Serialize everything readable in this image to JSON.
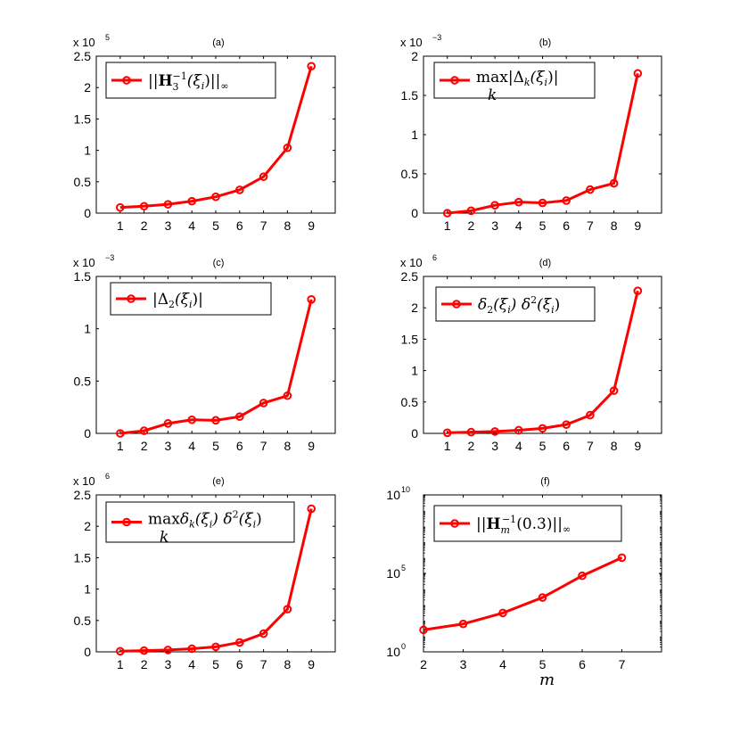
{
  "chart_data": [
    {
      "panel": "a",
      "type": "line",
      "title": "(a)",
      "legend": "||H_3^{-1}(ξ_i)||_∞",
      "exponent": "x 10",
      "exponent_power": "5",
      "x": [
        1,
        2,
        3,
        4,
        5,
        6,
        7,
        8,
        9
      ],
      "y": [
        0.09,
        0.11,
        0.14,
        0.19,
        0.26,
        0.37,
        0.58,
        1.04,
        2.34
      ],
      "xlim": [
        0,
        10
      ],
      "ylim": [
        0,
        2.5
      ],
      "xticks": [
        1,
        2,
        3,
        4,
        5,
        6,
        7,
        8,
        9
      ],
      "yticks": [
        0,
        0.5,
        1,
        1.5,
        2,
        2.5
      ],
      "ytick_labels": [
        "0",
        "0.5",
        "1",
        "1.5",
        "2",
        "2.5"
      ],
      "legend_position": "top-left",
      "grid": false
    },
    {
      "panel": "b",
      "type": "line",
      "title": "(b)",
      "legend": "max_k |Δ_k(ξ_i)|",
      "exponent": "x 10",
      "exponent_power": "−3",
      "x": [
        1,
        2,
        3,
        4,
        5,
        6,
        7,
        8,
        9
      ],
      "y": [
        0.0,
        0.03,
        0.1,
        0.14,
        0.13,
        0.16,
        0.3,
        0.38,
        1.78
      ],
      "xlim": [
        0,
        10
      ],
      "ylim": [
        0,
        2
      ],
      "xticks": [
        1,
        2,
        3,
        4,
        5,
        6,
        7,
        8,
        9
      ],
      "yticks": [
        0,
        0.5,
        1,
        1.5,
        2
      ],
      "ytick_labels": [
        "0",
        "0.5",
        "1",
        "1.5",
        "2"
      ],
      "legend_position": "top-left",
      "grid": false
    },
    {
      "panel": "c",
      "type": "line",
      "title": "(c)",
      "legend": "|Δ_2(ξ_i)|",
      "exponent": "x 10",
      "exponent_power": "−3",
      "x": [
        1,
        2,
        3,
        4,
        5,
        6,
        7,
        8,
        9
      ],
      "y": [
        0.0,
        0.025,
        0.095,
        0.13,
        0.125,
        0.16,
        0.29,
        0.36,
        1.28
      ],
      "xlim": [
        0,
        10
      ],
      "ylim": [
        0,
        1.5
      ],
      "xticks": [
        1,
        2,
        3,
        4,
        5,
        6,
        7,
        8,
        9
      ],
      "yticks": [
        0,
        0.5,
        1,
        1.5
      ],
      "ytick_labels": [
        "0",
        "0.5",
        "1",
        "1.5"
      ],
      "legend_position": "top-left",
      "grid": false
    },
    {
      "panel": "d",
      "type": "line",
      "title": "(d)",
      "legend": "δ_2(ξ_i) δ^2(ξ_i)",
      "exponent": "x 10",
      "exponent_power": "6",
      "x": [
        1,
        2,
        3,
        4,
        5,
        6,
        7,
        8,
        9
      ],
      "y": [
        0.01,
        0.02,
        0.03,
        0.05,
        0.08,
        0.14,
        0.29,
        0.68,
        2.27
      ],
      "xlim": [
        0,
        10
      ],
      "ylim": [
        0,
        2.5
      ],
      "xticks": [
        1,
        2,
        3,
        4,
        5,
        6,
        7,
        8,
        9
      ],
      "yticks": [
        0,
        0.5,
        1,
        1.5,
        2,
        2.5
      ],
      "ytick_labels": [
        "0",
        "0.5",
        "1",
        "1.5",
        "2",
        "2.5"
      ],
      "legend_position": "top-left",
      "grid": false
    },
    {
      "panel": "e",
      "type": "line",
      "title": "(e)",
      "legend": "max_k δ_k(ξ_i) δ^2(ξ_i)",
      "exponent": "x 10",
      "exponent_power": "6",
      "x": [
        1,
        2,
        3,
        4,
        5,
        6,
        7,
        8,
        9
      ],
      "y": [
        0.01,
        0.02,
        0.03,
        0.05,
        0.08,
        0.15,
        0.29,
        0.68,
        2.28
      ],
      "xlim": [
        0,
        10
      ],
      "ylim": [
        0,
        2.5
      ],
      "xticks": [
        1,
        2,
        3,
        4,
        5,
        6,
        7,
        8,
        9
      ],
      "yticks": [
        0,
        0.5,
        1,
        1.5,
        2,
        2.5
      ],
      "ytick_labels": [
        "0",
        "0.5",
        "1",
        "1.5",
        "2",
        "2.5"
      ],
      "legend_position": "top-left",
      "grid": false
    },
    {
      "panel": "f",
      "type": "line",
      "title": "(f)",
      "legend": "||H_m^{-1}(0.3)||_∞",
      "xlabel": "m",
      "yscale": "log",
      "x": [
        2,
        3,
        4,
        5,
        6,
        7
      ],
      "y": [
        25,
        60,
        300,
        2900,
        70000,
        1000000
      ],
      "xlim": [
        2,
        8
      ],
      "ylim": [
        1,
        10000000000
      ],
      "xticks": [
        2,
        3,
        4,
        5,
        6,
        7
      ],
      "yticks": [
        1,
        100000,
        10000000000
      ],
      "ytick_labels": [
        {
          "base": "10",
          "power": "0"
        },
        {
          "base": "10",
          "power": "5"
        },
        {
          "base": "10",
          "power": "10"
        }
      ],
      "legend_position": "top-left",
      "grid": false
    }
  ],
  "colors": {
    "series": "#ff0000",
    "axes": "#000000",
    "background": "#ffffff"
  }
}
